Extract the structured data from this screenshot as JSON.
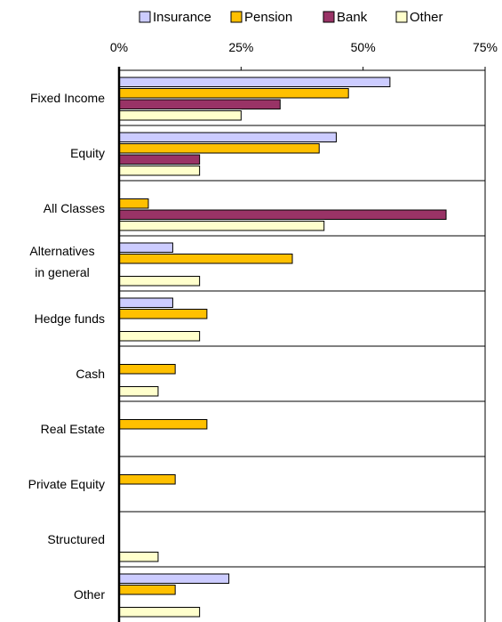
{
  "chart_data": {
    "type": "bar",
    "orientation": "horizontal",
    "title": "",
    "xlabel": "",
    "ylabel": "",
    "xlim": [
      0,
      75
    ],
    "x_ticks": [
      "0%",
      "25%",
      "50%",
      "75%"
    ],
    "x_tick_values": [
      0,
      25,
      50,
      75
    ],
    "x_axis_position": "top",
    "grid": "horizontal separators between categories",
    "legend": "top",
    "categories": [
      [
        "Fixed Income"
      ],
      [
        "Equity"
      ],
      [
        "All Classes"
      ],
      [
        "Alternatives",
        "in general"
      ],
      [
        "Hedge funds"
      ],
      [
        "Cash"
      ],
      [
        "Real Estate"
      ],
      [
        "Private Equity"
      ],
      [
        "Structured"
      ],
      [
        "Other"
      ]
    ],
    "series": [
      {
        "name": "Insurance",
        "color": "#ccccff",
        "values": [
          55.5,
          44.5,
          0,
          11,
          11,
          0,
          0,
          0,
          0,
          22.5
        ]
      },
      {
        "name": "Pension",
        "color": "#ffc000",
        "values": [
          47,
          41,
          6,
          35.5,
          18,
          11.5,
          18,
          11.5,
          0,
          11.5
        ]
      },
      {
        "name": "Bank",
        "color": "#993366",
        "values": [
          33,
          16.5,
          67,
          0,
          0,
          0,
          0,
          0,
          0,
          0
        ]
      },
      {
        "name": "Other",
        "color": "#ffffcc",
        "values": [
          25,
          16.5,
          42,
          16.5,
          16.5,
          8,
          0,
          0,
          8,
          16.5
        ]
      }
    ]
  }
}
